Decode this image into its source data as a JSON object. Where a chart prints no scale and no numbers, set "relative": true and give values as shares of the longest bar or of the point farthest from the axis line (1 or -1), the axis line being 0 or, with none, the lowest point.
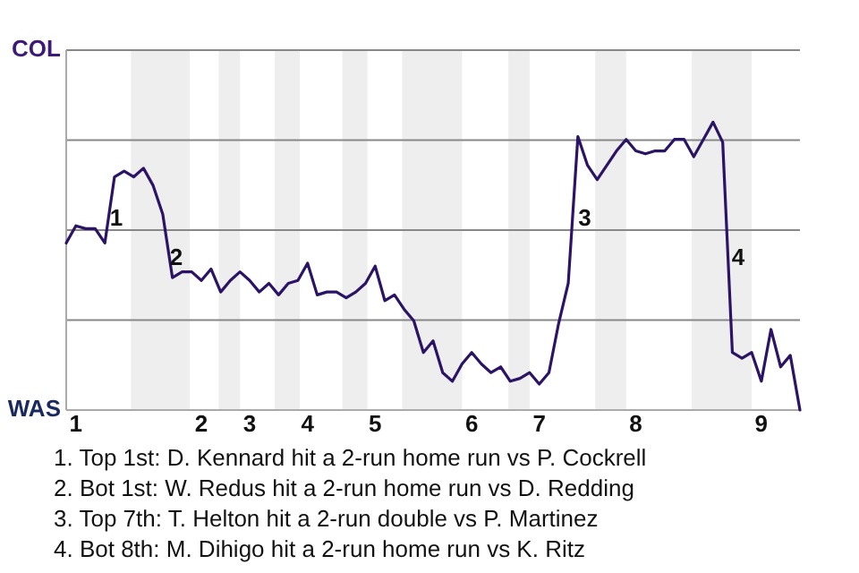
{
  "chart_data": {
    "type": "line",
    "categories": [
      null,
      "1",
      null,
      null,
      null,
      null,
      null,
      null,
      null,
      null,
      null,
      null,
      null,
      null,
      "2",
      null,
      null,
      null,
      null,
      "3",
      null,
      null,
      null,
      null,
      null,
      "4",
      null,
      null,
      null,
      null,
      null,
      null,
      "5",
      null,
      null,
      null,
      null,
      null,
      null,
      null,
      null,
      null,
      "6",
      null,
      null,
      null,
      null,
      null,
      null,
      "7",
      null,
      null,
      null,
      null,
      null,
      null,
      null,
      null,
      null,
      "8",
      null,
      null,
      null,
      null,
      null,
      null,
      null,
      null,
      null,
      null,
      null,
      null,
      "9",
      null,
      null,
      null,
      null
    ],
    "relative": true,
    "series": [
      {
        "color": "#2b1466",
        "values": [
          0.58,
          0.64,
          0.63,
          0.63,
          0.58,
          0.81,
          0.83,
          0.81,
          0.84,
          0.78,
          0.68,
          0.46,
          0.48,
          0.48,
          0.45,
          0.49,
          0.41,
          0.45,
          0.48,
          0.45,
          0.41,
          0.44,
          0.4,
          0.44,
          0.45,
          0.51,
          0.4,
          0.41,
          0.41,
          0.39,
          0.41,
          0.44,
          0.5,
          0.38,
          0.4,
          0.35,
          0.31,
          0.2,
          0.24,
          0.13,
          0.1,
          0.16,
          0.2,
          0.16,
          0.13,
          0.15,
          0.1,
          0.11,
          0.13,
          0.09,
          0.13,
          0.3,
          0.44,
          0.95,
          0.85,
          0.8,
          0.85,
          0.9,
          0.94,
          0.9,
          0.89,
          0.9,
          0.9,
          0.94,
          0.94,
          0.88,
          0.94,
          1,
          0.93,
          0.2,
          0.18,
          0.2,
          0.1,
          0.28,
          0.15,
          0.19,
          0
        ]
      }
    ],
    "grid": "y",
    "marker": "none",
    "line_style": "solid",
    "annotations": [
      "1",
      "2",
      "3",
      "4",
      "COL",
      "WAS",
      "1. Top 1st: D. Kennard hit a 2-run home run vs P. Cockrell",
      "2. Bot 1st: W. Redus hit a 2-run home run vs D. Redding",
      "3. Top 7th: T. Helton hit a 2-run double vs P. Martinez",
      "4. Bot 8th: M. Dihigo hit a 2-run home run vs K. Ritz"
    ]
  }
}
